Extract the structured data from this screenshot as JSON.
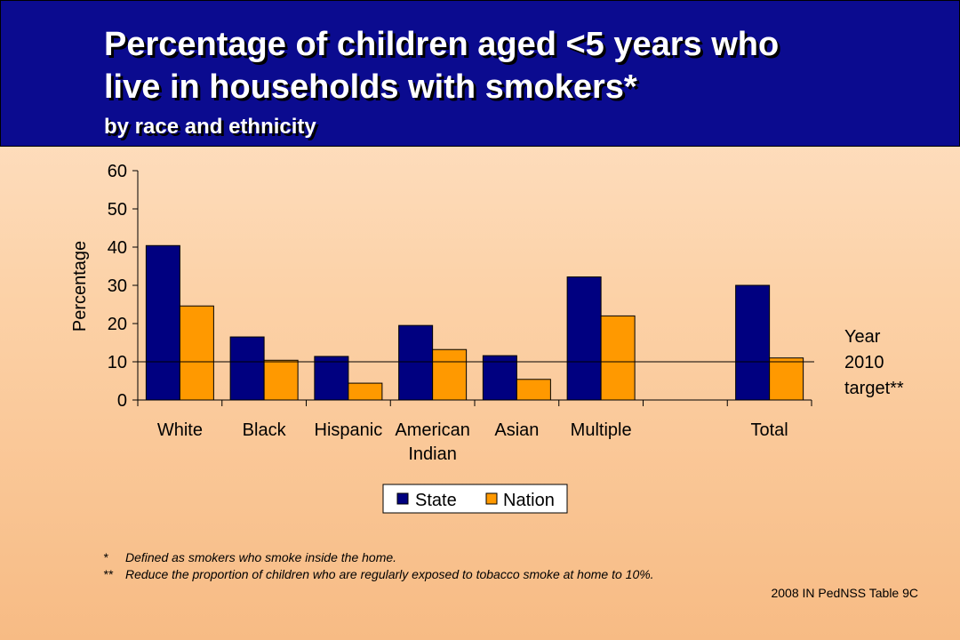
{
  "header": {
    "title_line1": "Percentage of children aged <5 years who",
    "title_line2": "live in households with smokers*",
    "subtitle": "by race and ethnicity"
  },
  "chart_data": {
    "type": "bar",
    "categories": [
      [
        "White"
      ],
      [
        "Black"
      ],
      [
        "Hispanic"
      ],
      [
        "American",
        "Indian"
      ],
      [
        "Asian"
      ],
      [
        "Multiple"
      ],
      [
        ""
      ],
      [
        "Total"
      ]
    ],
    "series": [
      {
        "name": "State",
        "color": "#000080",
        "values": [
          40.4,
          16.5,
          11.4,
          19.5,
          11.6,
          32.2,
          null,
          30.0
        ]
      },
      {
        "name": "Nation",
        "color": "#ff9900",
        "values": [
          24.6,
          10.4,
          4.4,
          13.2,
          5.4,
          22.0,
          null,
          11.0
        ]
      }
    ],
    "ylabel": "Percentage",
    "ylim": [
      0,
      60
    ],
    "yticks": [
      0,
      10,
      20,
      30,
      40,
      50,
      60
    ],
    "target": {
      "value": 10,
      "label": [
        "Year",
        "2010",
        "target**"
      ]
    },
    "legend_placement": "bottom"
  },
  "notes": [
    {
      "mark": "*",
      "text": "Defined as smokers who smoke inside the home."
    },
    {
      "mark": "**",
      "text": "Reduce the proportion of children who are regularly exposed to tobacco smoke at home to 10%."
    }
  ],
  "source": "2008 IN PedNSS Table 9C"
}
